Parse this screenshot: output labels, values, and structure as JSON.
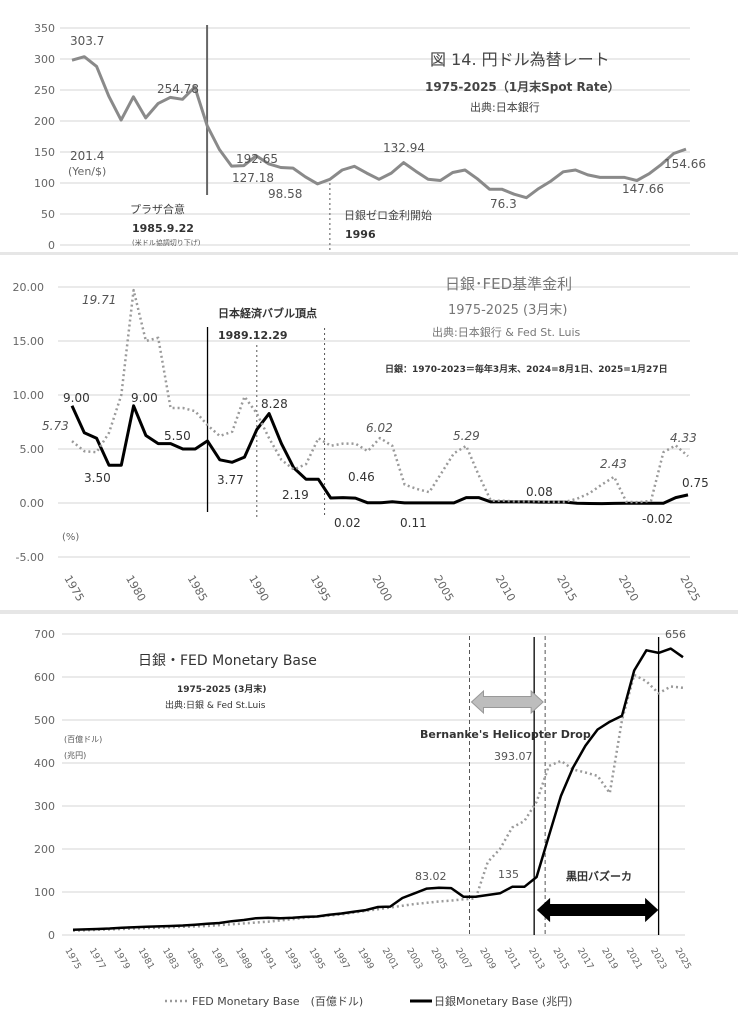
{
  "chart_data": [
    {
      "type": "line",
      "title": "図 14. 円ドル為替レート",
      "subtitle": "1975-2025（1月末Spot Rate）",
      "source": "出典:日本銀行",
      "ylabel": "(Yen/$)",
      "ylim": [
        0,
        350
      ],
      "yticks": [
        0,
        50,
        100,
        150,
        200,
        250,
        300,
        350
      ],
      "grid": true,
      "x": [
        1975,
        1976,
        1977,
        1978,
        1979,
        1980,
        1981,
        1982,
        1983,
        1984,
        1985,
        1986,
        1987,
        1988,
        1989,
        1990,
        1991,
        1992,
        1993,
        1994,
        1995,
        1996,
        1997,
        1998,
        1999,
        2000,
        2001,
        2002,
        2003,
        2004,
        2005,
        2006,
        2007,
        2008,
        2009,
        2010,
        2011,
        2012,
        2013,
        2014,
        2015,
        2016,
        2017,
        2018,
        2019,
        2020,
        2021,
        2022,
        2023,
        2024,
        2025
      ],
      "series": [
        {
          "color": "#8a8a8a",
          "style": "solid",
          "values": [
            298,
            303.7,
            288,
            240,
            201.4,
            239,
            205,
            228,
            238,
            235,
            254.78,
            192.65,
            154,
            127.18,
            128,
            144,
            131,
            125,
            124,
            110,
            98.58,
            106,
            121,
            127,
            116,
            106,
            116,
            132.94,
            119,
            106,
            104,
            117,
            121,
            107,
            90,
            90,
            82,
            76.3,
            91,
            103,
            118,
            121,
            113,
            109,
            109,
            109,
            104,
            115,
            130,
            147.66,
            154.66
          ]
        }
      ],
      "data_labels": [
        {
          "x": 1976,
          "text": "303.7"
        },
        {
          "x": 1979,
          "text": "201.4"
        },
        {
          "x": 1985,
          "text": "254.78"
        },
        {
          "x": 1986,
          "text": "192.65"
        },
        {
          "x": 1988,
          "text": "127.18"
        },
        {
          "x": 1995,
          "text": "98.58"
        },
        {
          "x": 2002,
          "text": "132.94"
        },
        {
          "x": 2012,
          "text": "76.3"
        },
        {
          "x": 2024,
          "text": "147.66"
        },
        {
          "x": 2025,
          "text": "154.66"
        }
      ],
      "annotations": [
        {
          "text": "プラザ合意"
        },
        {
          "text": "1985.9.22"
        },
        {
          "text": "(米ドル協調切り下げ)"
        },
        {
          "text": "日銀ゼロ金利開始"
        },
        {
          "text": "1996"
        }
      ],
      "markers": [
        {
          "x": 1986,
          "style": "solid"
        },
        {
          "x": 1996,
          "style": "dotted"
        }
      ]
    },
    {
      "type": "line",
      "title": "日銀･FED基準金利",
      "subtitle": "1975-2025 (3月末)",
      "source": "出典:日本銀行 & Fed St. Luis",
      "note": "日銀：1970-2023＝毎年3月末、2024=8月1日、2025=1月27日",
      "ylabel": "(%)",
      "ylim": [
        -5,
        20
      ],
      "yticks": [
        "-5.00",
        "0.00",
        "5.00",
        "10.00",
        "15.00",
        "20.00"
      ],
      "xticks": [
        "1975",
        "1980",
        "1985",
        "1990",
        "1995",
        "2000",
        "2005",
        "2010",
        "2015",
        "2020",
        "2025"
      ],
      "grid": true,
      "x": [
        1975,
        1976,
        1977,
        1978,
        1979,
        1980,
        1981,
        1982,
        1983,
        1984,
        1985,
        1986,
        1987,
        1988,
        1989,
        1990,
        1991,
        1992,
        1993,
        1994,
        1995,
        1996,
        1997,
        1998,
        1999,
        2000,
        2001,
        2002,
        2003,
        2004,
        2005,
        2006,
        2007,
        2008,
        2009,
        2010,
        2011,
        2012,
        2013,
        2014,
        2015,
        2016,
        2017,
        2018,
        2019,
        2020,
        2021,
        2022,
        2023,
        2024,
        2025
      ],
      "series": [
        {
          "key": "boj",
          "color": "#000000",
          "style": "solid",
          "values": [
            9.0,
            6.5,
            6.0,
            3.5,
            3.5,
            9.0,
            6.25,
            5.5,
            5.5,
            5.0,
            5.0,
            5.75,
            4.0,
            3.77,
            4.25,
            6.8,
            8.28,
            5.5,
            3.25,
            2.19,
            2.19,
            0.46,
            0.5,
            0.45,
            0.02,
            0.02,
            0.11,
            0.01,
            0.01,
            0.01,
            0.01,
            0.01,
            0.5,
            0.5,
            0.1,
            0.1,
            0.1,
            0.1,
            0.08,
            0.08,
            0.08,
            -0.02,
            -0.05,
            -0.06,
            -0.04,
            -0.02,
            -0.02,
            -0.02,
            -0.02,
            0.5,
            0.75
          ]
        },
        {
          "key": "fed",
          "color": "#9a9a9a",
          "style": "dotted",
          "values": [
            5.73,
            4.8,
            4.7,
            6.5,
            10.0,
            19.71,
            15.0,
            15.3,
            8.8,
            8.8,
            8.5,
            7.2,
            6.2,
            6.6,
            9.85,
            8.3,
            6.0,
            4.0,
            3.1,
            3.6,
            6.0,
            5.3,
            5.5,
            5.5,
            4.8,
            6.02,
            5.3,
            1.7,
            1.3,
            1.0,
            2.8,
            4.6,
            5.29,
            2.6,
            0.2,
            0.2,
            0.15,
            0.15,
            0.15,
            0.1,
            0.1,
            0.4,
            0.9,
            1.7,
            2.43,
            0.1,
            0.07,
            0.2,
            4.7,
            5.33,
            4.33
          ]
        }
      ],
      "data_labels": [
        {
          "series": "fed",
          "x": 1980,
          "text": "19.71"
        },
        {
          "series": "fed",
          "x": 1975,
          "text": "5.73"
        },
        {
          "series": "fed",
          "x": 2000,
          "text": "6.02"
        },
        {
          "series": "fed",
          "x": 2007,
          "text": "5.29"
        },
        {
          "series": "fed",
          "x": 2019,
          "text": "2.43"
        },
        {
          "series": "fed",
          "x": 2025,
          "text": "4.33"
        },
        {
          "series": "boj",
          "x": 1975,
          "text": "9.00"
        },
        {
          "series": "boj",
          "x": 1978,
          "text": "3.50"
        },
        {
          "series": "boj",
          "x": 1980,
          "text": "9.00"
        },
        {
          "series": "boj",
          "x": 1983,
          "text": "5.50"
        },
        {
          "series": "boj",
          "x": 1988,
          "text": "3.77"
        },
        {
          "series": "boj",
          "x": 1991,
          "text": "8.28"
        },
        {
          "series": "boj",
          "x": 1994,
          "text": "2.19"
        },
        {
          "series": "boj",
          "x": 1996,
          "text": "0.46"
        },
        {
          "series": "boj",
          "x": 1999,
          "text": "0.02"
        },
        {
          "series": "boj",
          "x": 2001,
          "text": "0.11"
        },
        {
          "series": "boj",
          "x": 2013,
          "text": "0.08"
        },
        {
          "series": "boj",
          "x": 2022,
          "text": "-0.02"
        },
        {
          "series": "boj",
          "x": 2025,
          "text": "0.75"
        }
      ],
      "annotations": [
        {
          "text": "日本経済バブル頂点"
        },
        {
          "text": "1989.12.29"
        }
      ],
      "markers": [
        {
          "x": 1986,
          "style": "solid"
        },
        {
          "x": 1990,
          "style": "dotted"
        },
        {
          "x": 1995.5,
          "style": "dotted"
        }
      ]
    },
    {
      "type": "line",
      "title": "日銀・FED Monetary Base",
      "subtitle": "1975-2025 (3月末)",
      "source": "出典:日銀 & Fed St.Luis",
      "ylabel": [
        "(百億ドル)",
        "(兆円)"
      ],
      "ylim": [
        0,
        700
      ],
      "yticks": [
        0,
        100,
        200,
        300,
        400,
        500,
        600,
        700
      ],
      "xticks": [
        "1975",
        "1977",
        "1979",
        "1981",
        "1983",
        "1985",
        "1987",
        "1989",
        "1991",
        "1993",
        "1995",
        "1997",
        "1999",
        "2001",
        "2003",
        "2005",
        "2007",
        "2009",
        "2011",
        "2013",
        "2015",
        "2017",
        "2019",
        "2021",
        "2023",
        "2025"
      ],
      "grid": true,
      "legend": "bottom",
      "x": [
        1975,
        1976,
        1977,
        1978,
        1979,
        1980,
        1981,
        1982,
        1983,
        1984,
        1985,
        1986,
        1987,
        1988,
        1989,
        1990,
        1991,
        1992,
        1993,
        1994,
        1995,
        1996,
        1997,
        1998,
        1999,
        2000,
        2001,
        2002,
        2003,
        2004,
        2005,
        2006,
        2007,
        2008,
        2009,
        2010,
        2011,
        2012,
        2013,
        2014,
        2015,
        2016,
        2017,
        2018,
        2019,
        2020,
        2021,
        2022,
        2023,
        2024,
        2025
      ],
      "series": [
        {
          "key": "fed",
          "name": "FED Monetary Base　(百億ドル)",
          "color": "#9a9a9a",
          "style": "dotted",
          "values": [
            10,
            11,
            12,
            13,
            14,
            15,
            16,
            17,
            18,
            19,
            20,
            21,
            23,
            25,
            27,
            29,
            31,
            34,
            37,
            40,
            43,
            45,
            48,
            52,
            56,
            60,
            64,
            68,
            72,
            75,
            78,
            80,
            83.02,
            85,
            170,
            200,
            250,
            265,
            310,
            393.07,
            405,
            385,
            378,
            370,
            330,
            500,
            605,
            590,
            562,
            578,
            575
          ]
        },
        {
          "key": "boj",
          "name": "日銀Monetary Base (兆円)",
          "color": "#000000",
          "style": "solid",
          "values": [
            12,
            13,
            14,
            15,
            17,
            18,
            19,
            20,
            21,
            22,
            24,
            26,
            28,
            32,
            35,
            39,
            40,
            39,
            40,
            42,
            43,
            47,
            50,
            54,
            58,
            65,
            66,
            86,
            97,
            108,
            110,
            109,
            89,
            89,
            93,
            97,
            112,
            112,
            135,
            230,
            324,
            390,
            440,
            478,
            496,
            510,
            615,
            662,
            656,
            666,
            646
          ]
        }
      ],
      "data_labels": [
        {
          "series": "fed",
          "x": 2007,
          "text": "83.02"
        },
        {
          "series": "boj",
          "x": 2013,
          "text": "135"
        },
        {
          "series": "fed",
          "x": 2014,
          "text": "393.07"
        },
        {
          "series": "boj",
          "x": 2023,
          "text": "656"
        }
      ],
      "annotations": [
        {
          "text": "Bernanke's Helicopter Drop"
        },
        {
          "text": "黒田バズーカ"
        }
      ],
      "markers": [
        {
          "x": 2007.5,
          "style": "dashed"
        },
        {
          "x": 2013.7,
          "style": "dashed"
        },
        {
          "x": 2012.8,
          "style": "solid"
        },
        {
          "x": 2023,
          "style": "solid"
        }
      ],
      "ranges": [
        {
          "from": 2007.5,
          "to": 2013.7,
          "color": "#bdbdbd"
        },
        {
          "from": 2013,
          "to": 2023,
          "color": "#000000"
        }
      ]
    }
  ]
}
